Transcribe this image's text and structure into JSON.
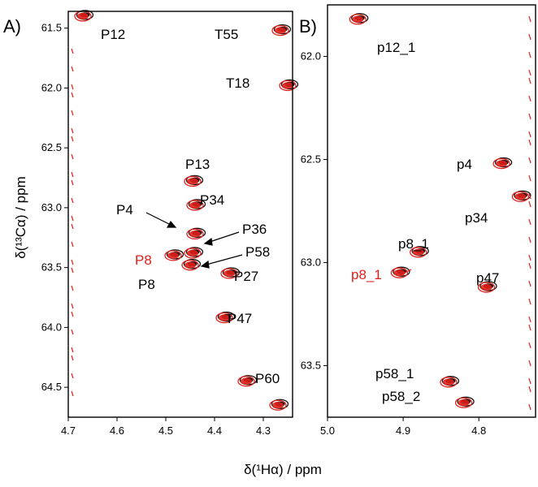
{
  "figure": {
    "xlabel": "δ(¹Hα) / ppm",
    "ylabel": "δ(¹³Cα) / ppm"
  },
  "colors": {
    "red": "#e0201b",
    "black": "#111111"
  },
  "chart_data": [
    {
      "panel": "A)",
      "type": "scatter",
      "xlim": [
        4.7,
        4.24
      ],
      "ylim": [
        61.36,
        64.75
      ],
      "xticks": [
        "4.7",
        "4.6",
        "4.5",
        "4.4",
        "4.3"
      ],
      "yticks": [
        "61.5",
        "62.0",
        "62.5",
        "63.0",
        "63.5",
        "64.0",
        "64.5"
      ],
      "peaks": [
        {
          "x": 4.67,
          "y": 61.4
        },
        {
          "x": 4.265,
          "y": 61.52
        },
        {
          "x": 4.25,
          "y": 61.98
        },
        {
          "x": 4.445,
          "y": 62.78
        },
        {
          "x": 4.44,
          "y": 62.98
        },
        {
          "x": 4.44,
          "y": 63.22
        },
        {
          "x": 4.445,
          "y": 63.38
        },
        {
          "x": 4.45,
          "y": 63.48
        },
        {
          "x": 4.485,
          "y": 63.4
        },
        {
          "x": 4.37,
          "y": 63.55
        },
        {
          "x": 4.38,
          "y": 63.92
        },
        {
          "x": 4.335,
          "y": 64.45
        },
        {
          "x": 4.27,
          "y": 64.65
        }
      ],
      "labels": [
        {
          "text": "P12",
          "color": "black"
        },
        {
          "text": "T55",
          "color": "black"
        },
        {
          "text": "T18",
          "color": "black"
        },
        {
          "text": "P13",
          "color": "black"
        },
        {
          "text": "P34",
          "color": "black"
        },
        {
          "text": "P4",
          "color": "black"
        },
        {
          "text": "P36",
          "color": "black"
        },
        {
          "text": "P58",
          "color": "black"
        },
        {
          "text": "P8",
          "color": "red"
        },
        {
          "text": "P8",
          "color": "black"
        },
        {
          "text": "P27",
          "color": "black"
        },
        {
          "text": "P47",
          "color": "black"
        },
        {
          "text": "P60",
          "color": "black"
        }
      ]
    },
    {
      "panel": "B)",
      "type": "scatter",
      "xlim": [
        5.0,
        4.725
      ],
      "ylim": [
        61.75,
        63.75
      ],
      "xticks": [
        "5.0",
        "4.9",
        "4.8"
      ],
      "yticks": [
        "62.0",
        "62.5",
        "63.0",
        "63.5"
      ],
      "peaks": [
        {
          "x": 4.96,
          "y": 61.82
        },
        {
          "x": 4.77,
          "y": 62.52
        },
        {
          "x": 4.745,
          "y": 62.68
        },
        {
          "x": 4.88,
          "y": 62.95
        },
        {
          "x": 4.905,
          "y": 63.05
        },
        {
          "x": 4.79,
          "y": 63.12
        },
        {
          "x": 4.84,
          "y": 63.58
        },
        {
          "x": 4.82,
          "y": 63.68
        }
      ],
      "labels": [
        {
          "text": "p12_1",
          "color": "black"
        },
        {
          "text": "p4",
          "color": "black"
        },
        {
          "text": "p34",
          "color": "black"
        },
        {
          "text": "p8_1",
          "color": "black"
        },
        {
          "text": "p8_1",
          "color": "red"
        },
        {
          "text": "p47",
          "color": "black"
        },
        {
          "text": "p58_1",
          "color": "black"
        },
        {
          "text": "p58_2",
          "color": "black"
        }
      ]
    }
  ]
}
